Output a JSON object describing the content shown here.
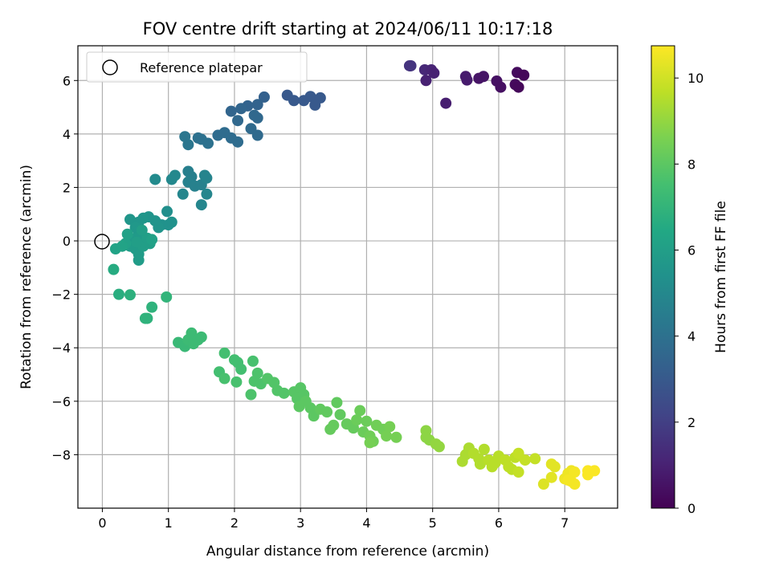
{
  "chart_data": {
    "type": "scatter",
    "title": "FOV centre drift starting at 2024/06/11 10:17:18",
    "xlabel": "Angular distance from reference (arcmin)",
    "ylabel": "Rotation from reference (arcmin)",
    "xlim": [
      -0.37,
      7.8
    ],
    "ylim": [
      -10.0,
      7.3
    ],
    "xticks": [
      0,
      1,
      2,
      3,
      4,
      5,
      6,
      7
    ],
    "yticks": [
      -8,
      -6,
      -4,
      -2,
      0,
      2,
      4,
      6
    ],
    "grid": true,
    "colormap": "viridis",
    "colorbar": {
      "label": "Hours from first FF file",
      "range": [
        0,
        10.75
      ],
      "ticks": [
        0,
        2,
        4,
        6,
        8,
        10
      ]
    },
    "legend": {
      "position": "top-left",
      "entries": [
        "Reference platepar"
      ]
    },
    "reference_point": {
      "x": 0,
      "y": 0,
      "label": "Reference platepar"
    },
    "points": [
      {
        "x": 4.65,
        "y": 6.55,
        "c": 1.6
      },
      {
        "x": 4.67,
        "y": 6.55,
        "c": 1.6
      },
      {
        "x": 4.88,
        "y": 6.4,
        "c": 1.2
      },
      {
        "x": 4.98,
        "y": 6.4,
        "c": 1.1
      },
      {
        "x": 5.02,
        "y": 6.28,
        "c": 1.0
      },
      {
        "x": 4.9,
        "y": 6.0,
        "c": 1.0
      },
      {
        "x": 5.2,
        "y": 5.15,
        "c": 0.9
      },
      {
        "x": 5.5,
        "y": 6.15,
        "c": 0.8
      },
      {
        "x": 5.52,
        "y": 6.02,
        "c": 0.8
      },
      {
        "x": 5.7,
        "y": 6.08,
        "c": 0.6
      },
      {
        "x": 5.77,
        "y": 6.15,
        "c": 0.6
      },
      {
        "x": 5.97,
        "y": 5.98,
        "c": 0.5
      },
      {
        "x": 6.03,
        "y": 5.75,
        "c": 0.45
      },
      {
        "x": 6.28,
        "y": 6.3,
        "c": 0.3
      },
      {
        "x": 6.38,
        "y": 6.2,
        "c": 0.2
      },
      {
        "x": 6.25,
        "y": 5.85,
        "c": 0.25
      },
      {
        "x": 6.3,
        "y": 5.75,
        "c": 0.2
      },
      {
        "x": 2.8,
        "y": 5.45,
        "c": 3.0
      },
      {
        "x": 2.9,
        "y": 5.25,
        "c": 3.0
      },
      {
        "x": 3.05,
        "y": 5.25,
        "c": 3.0
      },
      {
        "x": 3.15,
        "y": 5.4,
        "c": 3.0
      },
      {
        "x": 3.3,
        "y": 5.35,
        "c": 3.0
      },
      {
        "x": 3.22,
        "y": 5.08,
        "c": 3.0
      },
      {
        "x": 2.45,
        "y": 5.38,
        "c": 3.3
      },
      {
        "x": 2.35,
        "y": 5.1,
        "c": 3.4
      },
      {
        "x": 2.2,
        "y": 5.05,
        "c": 3.4
      },
      {
        "x": 2.1,
        "y": 4.95,
        "c": 3.5
      },
      {
        "x": 1.95,
        "y": 4.85,
        "c": 3.5
      },
      {
        "x": 2.05,
        "y": 4.5,
        "c": 3.6
      },
      {
        "x": 2.3,
        "y": 4.7,
        "c": 3.6
      },
      {
        "x": 2.35,
        "y": 4.6,
        "c": 3.6
      },
      {
        "x": 2.25,
        "y": 4.2,
        "c": 3.7
      },
      {
        "x": 2.35,
        "y": 3.95,
        "c": 3.7
      },
      {
        "x": 1.75,
        "y": 3.95,
        "c": 3.8
      },
      {
        "x": 1.85,
        "y": 4.05,
        "c": 3.8
      },
      {
        "x": 1.95,
        "y": 3.85,
        "c": 3.8
      },
      {
        "x": 2.05,
        "y": 3.7,
        "c": 3.8
      },
      {
        "x": 1.6,
        "y": 3.65,
        "c": 4.0
      },
      {
        "x": 1.45,
        "y": 3.85,
        "c": 4.0
      },
      {
        "x": 1.5,
        "y": 3.8,
        "c": 4.0
      },
      {
        "x": 1.3,
        "y": 3.6,
        "c": 4.2
      },
      {
        "x": 1.25,
        "y": 3.9,
        "c": 4.2
      },
      {
        "x": 1.3,
        "y": 2.6,
        "c": 4.6
      },
      {
        "x": 1.35,
        "y": 2.4,
        "c": 4.6
      },
      {
        "x": 1.3,
        "y": 2.2,
        "c": 4.7
      },
      {
        "x": 1.4,
        "y": 2.05,
        "c": 4.7
      },
      {
        "x": 1.5,
        "y": 2.1,
        "c": 4.7
      },
      {
        "x": 1.55,
        "y": 2.45,
        "c": 4.8
      },
      {
        "x": 1.58,
        "y": 2.35,
        "c": 4.8
      },
      {
        "x": 1.58,
        "y": 1.75,
        "c": 4.9
      },
      {
        "x": 1.5,
        "y": 1.35,
        "c": 4.9
      },
      {
        "x": 1.22,
        "y": 1.75,
        "c": 4.9
      },
      {
        "x": 1.05,
        "y": 2.3,
        "c": 5.0
      },
      {
        "x": 1.1,
        "y": 2.45,
        "c": 5.0
      },
      {
        "x": 0.8,
        "y": 2.3,
        "c": 5.1
      },
      {
        "x": 0.98,
        "y": 1.1,
        "c": 5.3
      },
      {
        "x": 1.05,
        "y": 0.7,
        "c": 5.4
      },
      {
        "x": 1.0,
        "y": 0.6,
        "c": 5.4
      },
      {
        "x": 0.9,
        "y": 0.6,
        "c": 5.4
      },
      {
        "x": 0.85,
        "y": 0.5,
        "c": 5.5
      },
      {
        "x": 0.8,
        "y": 0.75,
        "c": 5.5
      },
      {
        "x": 0.7,
        "y": 0.9,
        "c": 5.5
      },
      {
        "x": 0.62,
        "y": 0.85,
        "c": 5.6
      },
      {
        "x": 0.55,
        "y": 0.7,
        "c": 5.6
      },
      {
        "x": 0.42,
        "y": 0.8,
        "c": 5.6
      },
      {
        "x": 0.5,
        "y": 0.5,
        "c": 5.7
      },
      {
        "x": 0.55,
        "y": 0.35,
        "c": 5.7
      },
      {
        "x": 0.58,
        "y": 0.2,
        "c": 5.8
      },
      {
        "x": 0.5,
        "y": 0.1,
        "c": 5.8
      },
      {
        "x": 0.45,
        "y": 0.0,
        "c": 5.8
      },
      {
        "x": 0.42,
        "y": -0.2,
        "c": 5.9
      },
      {
        "x": 0.5,
        "y": -0.3,
        "c": 5.9
      },
      {
        "x": 0.55,
        "y": -0.5,
        "c": 5.9
      },
      {
        "x": 0.55,
        "y": -0.72,
        "c": 5.9
      },
      {
        "x": 0.62,
        "y": -0.2,
        "c": 6.0
      },
      {
        "x": 0.68,
        "y": 0.1,
        "c": 6.0
      },
      {
        "x": 0.72,
        "y": -0.1,
        "c": 6.0
      },
      {
        "x": 0.75,
        "y": 0.05,
        "c": 6.1
      },
      {
        "x": 0.35,
        "y": -0.1,
        "c": 6.1
      },
      {
        "x": 0.38,
        "y": 0.25,
        "c": 6.1
      },
      {
        "x": 0.3,
        "y": -0.2,
        "c": 6.2
      },
      {
        "x": 0.2,
        "y": -0.3,
        "c": 6.2
      },
      {
        "x": 0.6,
        "y": 0.4,
        "c": 6.0
      },
      {
        "x": 0.52,
        "y": -0.05,
        "c": 6.0
      },
      {
        "x": 0.17,
        "y": -1.07,
        "c": 6.6
      },
      {
        "x": 0.25,
        "y": -2.0,
        "c": 6.7
      },
      {
        "x": 0.42,
        "y": -2.02,
        "c": 6.8
      },
      {
        "x": 0.75,
        "y": -2.48,
        "c": 6.9
      },
      {
        "x": 0.68,
        "y": -2.9,
        "c": 6.9
      },
      {
        "x": 0.65,
        "y": -2.9,
        "c": 6.9
      },
      {
        "x": 0.97,
        "y": -2.1,
        "c": 7.0
      },
      {
        "x": 1.15,
        "y": -3.8,
        "c": 7.2
      },
      {
        "x": 1.25,
        "y": -3.95,
        "c": 7.2
      },
      {
        "x": 1.3,
        "y": -3.7,
        "c": 7.3
      },
      {
        "x": 1.35,
        "y": -3.45,
        "c": 7.3
      },
      {
        "x": 1.38,
        "y": -3.85,
        "c": 7.3
      },
      {
        "x": 1.45,
        "y": -3.7,
        "c": 7.3
      },
      {
        "x": 1.5,
        "y": -3.6,
        "c": 7.3
      },
      {
        "x": 1.85,
        "y": -4.2,
        "c": 7.5
      },
      {
        "x": 2.0,
        "y": -4.45,
        "c": 7.5
      },
      {
        "x": 2.05,
        "y": -4.55,
        "c": 7.5
      },
      {
        "x": 2.1,
        "y": -4.8,
        "c": 7.5
      },
      {
        "x": 1.77,
        "y": -4.9,
        "c": 7.5
      },
      {
        "x": 1.85,
        "y": -5.15,
        "c": 7.6
      },
      {
        "x": 2.03,
        "y": -5.28,
        "c": 7.6
      },
      {
        "x": 2.28,
        "y": -4.5,
        "c": 7.6
      },
      {
        "x": 2.35,
        "y": -4.95,
        "c": 7.7
      },
      {
        "x": 2.3,
        "y": -5.25,
        "c": 7.7
      },
      {
        "x": 2.4,
        "y": -5.35,
        "c": 7.7
      },
      {
        "x": 2.25,
        "y": -5.75,
        "c": 7.7
      },
      {
        "x": 2.5,
        "y": -5.15,
        "c": 7.8
      },
      {
        "x": 2.6,
        "y": -5.3,
        "c": 7.8
      },
      {
        "x": 2.65,
        "y": -5.6,
        "c": 7.8
      },
      {
        "x": 2.75,
        "y": -5.7,
        "c": 7.8
      },
      {
        "x": 2.9,
        "y": -5.65,
        "c": 7.9
      },
      {
        "x": 2.95,
        "y": -5.9,
        "c": 7.9
      },
      {
        "x": 3.0,
        "y": -5.5,
        "c": 7.9
      },
      {
        "x": 3.05,
        "y": -5.75,
        "c": 7.9
      },
      {
        "x": 2.98,
        "y": -6.2,
        "c": 8.0
      },
      {
        "x": 3.08,
        "y": -6.0,
        "c": 8.0
      },
      {
        "x": 3.15,
        "y": -6.25,
        "c": 8.0
      },
      {
        "x": 3.2,
        "y": -6.55,
        "c": 8.0
      },
      {
        "x": 3.3,
        "y": -6.3,
        "c": 8.1
      },
      {
        "x": 3.4,
        "y": -6.4,
        "c": 8.1
      },
      {
        "x": 3.55,
        "y": -6.05,
        "c": 8.1
      },
      {
        "x": 3.6,
        "y": -6.5,
        "c": 8.1
      },
      {
        "x": 3.5,
        "y": -6.9,
        "c": 8.2
      },
      {
        "x": 3.45,
        "y": -7.05,
        "c": 8.2
      },
      {
        "x": 3.7,
        "y": -6.85,
        "c": 8.2
      },
      {
        "x": 3.8,
        "y": -7.0,
        "c": 8.2
      },
      {
        "x": 3.85,
        "y": -6.7,
        "c": 8.3
      },
      {
        "x": 3.9,
        "y": -6.35,
        "c": 8.3
      },
      {
        "x": 4.0,
        "y": -6.75,
        "c": 8.3
      },
      {
        "x": 3.95,
        "y": -7.15,
        "c": 8.3
      },
      {
        "x": 4.05,
        "y": -7.3,
        "c": 8.4
      },
      {
        "x": 4.1,
        "y": -7.5,
        "c": 8.4
      },
      {
        "x": 4.15,
        "y": -6.9,
        "c": 8.4
      },
      {
        "x": 4.25,
        "y": -7.05,
        "c": 8.4
      },
      {
        "x": 4.3,
        "y": -7.3,
        "c": 8.5
      },
      {
        "x": 4.35,
        "y": -6.95,
        "c": 8.5
      },
      {
        "x": 4.45,
        "y": -7.35,
        "c": 8.5
      },
      {
        "x": 4.05,
        "y": -7.55,
        "c": 8.5
      },
      {
        "x": 4.9,
        "y": -7.1,
        "c": 8.9
      },
      {
        "x": 4.95,
        "y": -7.45,
        "c": 8.9
      },
      {
        "x": 5.05,
        "y": -7.6,
        "c": 9.0
      },
      {
        "x": 5.1,
        "y": -7.7,
        "c": 9.0
      },
      {
        "x": 4.9,
        "y": -7.35,
        "c": 8.9
      },
      {
        "x": 5.45,
        "y": -8.25,
        "c": 9.4
      },
      {
        "x": 5.5,
        "y": -8.0,
        "c": 9.4
      },
      {
        "x": 5.55,
        "y": -7.75,
        "c": 9.4
      },
      {
        "x": 5.62,
        "y": -7.95,
        "c": 9.5
      },
      {
        "x": 5.7,
        "y": -8.15,
        "c": 9.5
      },
      {
        "x": 5.72,
        "y": -8.35,
        "c": 9.5
      },
      {
        "x": 5.78,
        "y": -7.8,
        "c": 9.5
      },
      {
        "x": 5.85,
        "y": -8.2,
        "c": 9.6
      },
      {
        "x": 5.9,
        "y": -8.45,
        "c": 9.6
      },
      {
        "x": 5.95,
        "y": -8.3,
        "c": 9.6
      },
      {
        "x": 6.0,
        "y": -8.05,
        "c": 9.6
      },
      {
        "x": 6.1,
        "y": -8.2,
        "c": 9.7
      },
      {
        "x": 6.15,
        "y": -8.45,
        "c": 9.7
      },
      {
        "x": 6.2,
        "y": -8.55,
        "c": 9.7
      },
      {
        "x": 6.25,
        "y": -8.1,
        "c": 9.7
      },
      {
        "x": 6.3,
        "y": -7.95,
        "c": 9.8
      },
      {
        "x": 6.3,
        "y": -8.65,
        "c": 9.8
      },
      {
        "x": 6.4,
        "y": -8.2,
        "c": 9.8
      },
      {
        "x": 6.55,
        "y": -8.15,
        "c": 9.8
      },
      {
        "x": 6.85,
        "y": -8.45,
        "c": 10.3
      },
      {
        "x": 6.8,
        "y": -8.35,
        "c": 10.3
      },
      {
        "x": 6.68,
        "y": -9.1,
        "c": 10.2
      },
      {
        "x": 6.8,
        "y": -8.85,
        "c": 10.3
      },
      {
        "x": 7.0,
        "y": -8.9,
        "c": 10.5
      },
      {
        "x": 7.05,
        "y": -8.7,
        "c": 10.5
      },
      {
        "x": 7.1,
        "y": -8.6,
        "c": 10.5
      },
      {
        "x": 7.15,
        "y": -8.65,
        "c": 10.6
      },
      {
        "x": 7.1,
        "y": -9.0,
        "c": 10.6
      },
      {
        "x": 7.15,
        "y": -9.1,
        "c": 10.6
      },
      {
        "x": 7.35,
        "y": -8.6,
        "c": 10.7
      },
      {
        "x": 7.35,
        "y": -8.75,
        "c": 10.7
      },
      {
        "x": 7.45,
        "y": -8.6,
        "c": 10.7
      },
      {
        "x": 7.05,
        "y": -8.95,
        "c": 10.6
      }
    ]
  }
}
